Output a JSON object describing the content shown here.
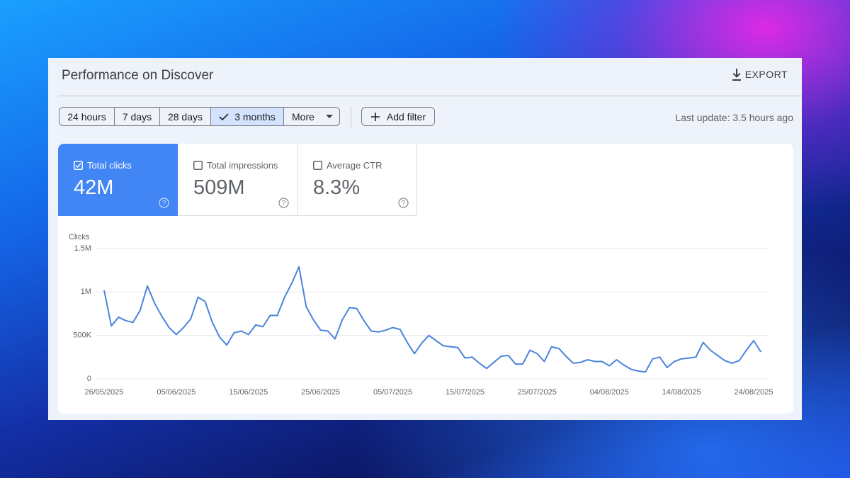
{
  "header": {
    "title": "Performance on Discover",
    "export": "EXPORT"
  },
  "filters": [
    "24 hours",
    "7 days",
    "28 days",
    "3 months",
    "More"
  ],
  "selected_filter": "3 months",
  "add_filter": "Add filter",
  "last_update": "Last update: 3.5 hours ago",
  "metrics": [
    {
      "label": "Total clicks",
      "value": "42M",
      "checked": true
    },
    {
      "label": "Total impressions",
      "value": "509M",
      "checked": false
    },
    {
      "label": "Average CTR",
      "value": "8.3%",
      "checked": false
    }
  ],
  "chart_data": {
    "type": "line",
    "y_label": "Clicks",
    "x": [
      "26/05/2025",
      "27/05/2025",
      "28/05/2025",
      "29/05/2025",
      "30/05/2025",
      "31/05/2025",
      "01/06/2025",
      "02/06/2025",
      "03/06/2025",
      "04/06/2025",
      "05/06/2025",
      "06/06/2025",
      "07/06/2025",
      "08/06/2025",
      "09/06/2025",
      "10/06/2025",
      "11/06/2025",
      "12/06/2025",
      "13/06/2025",
      "14/06/2025",
      "15/06/2025",
      "16/06/2025",
      "17/06/2025",
      "18/06/2025",
      "19/06/2025",
      "20/06/2025",
      "21/06/2025",
      "22/06/2025",
      "23/06/2025",
      "24/06/2025",
      "25/06/2025",
      "26/06/2025",
      "27/06/2025",
      "28/06/2025",
      "29/06/2025",
      "30/06/2025",
      "01/07/2025",
      "02/07/2025",
      "03/07/2025",
      "04/07/2025",
      "05/07/2025",
      "06/07/2025",
      "07/07/2025",
      "08/07/2025",
      "09/07/2025",
      "10/07/2025",
      "11/07/2025",
      "12/07/2025",
      "13/07/2025",
      "14/07/2025",
      "15/07/2025",
      "16/07/2025",
      "17/07/2025",
      "18/07/2025",
      "19/07/2025",
      "20/07/2025",
      "21/07/2025",
      "22/07/2025",
      "23/07/2025",
      "24/07/2025",
      "25/07/2025",
      "26/07/2025",
      "27/07/2025",
      "28/07/2025",
      "29/07/2025",
      "30/07/2025",
      "31/07/2025",
      "01/08/2025",
      "02/08/2025",
      "03/08/2025",
      "04/08/2025",
      "05/08/2025",
      "06/08/2025",
      "07/08/2025",
      "08/08/2025",
      "09/08/2025",
      "10/08/2025",
      "11/08/2025",
      "12/08/2025",
      "13/08/2025",
      "14/08/2025",
      "15/08/2025",
      "16/08/2025",
      "17/08/2025",
      "18/08/2025",
      "19/08/2025",
      "20/08/2025",
      "21/08/2025",
      "22/08/2025",
      "23/08/2025",
      "24/08/2025",
      "25/08/2025"
    ],
    "series": [
      {
        "name": "Clicks",
        "color": "#4a84dc",
        "values": [
          1020000,
          610000,
          710000,
          670000,
          650000,
          790000,
          1070000,
          870000,
          720000,
          590000,
          510000,
          590000,
          690000,
          940000,
          890000,
          650000,
          480000,
          390000,
          530000,
          550000,
          510000,
          620000,
          600000,
          730000,
          730000,
          940000,
          1100000,
          1290000,
          830000,
          680000,
          560000,
          550000,
          460000,
          680000,
          820000,
          810000,
          670000,
          550000,
          540000,
          560000,
          590000,
          570000,
          420000,
          290000,
          410000,
          500000,
          440000,
          380000,
          370000,
          360000,
          240000,
          250000,
          180000,
          120000,
          190000,
          260000,
          270000,
          170000,
          170000,
          330000,
          290000,
          200000,
          370000,
          350000,
          260000,
          180000,
          190000,
          220000,
          200000,
          200000,
          150000,
          220000,
          160000,
          110000,
          90000,
          80000,
          230000,
          250000,
          130000,
          200000,
          230000,
          240000,
          250000,
          420000,
          330000,
          270000,
          210000,
          180000,
          210000,
          330000,
          440000,
          310000
        ]
      }
    ],
    "xticks": [
      "26/05/2025",
      "05/06/2025",
      "15/06/2025",
      "25/06/2025",
      "05/07/2025",
      "15/07/2025",
      "25/07/2025",
      "04/08/2025",
      "14/08/2025",
      "24/08/2025"
    ],
    "ylim": [
      0,
      1500000
    ],
    "yticks": [
      0,
      {
        "value": 500000,
        "label": "500K"
      },
      {
        "value": 1000000,
        "label": "1M"
      },
      {
        "value": 1500000,
        "label": "1.5M"
      }
    ],
    "grid": true
  }
}
